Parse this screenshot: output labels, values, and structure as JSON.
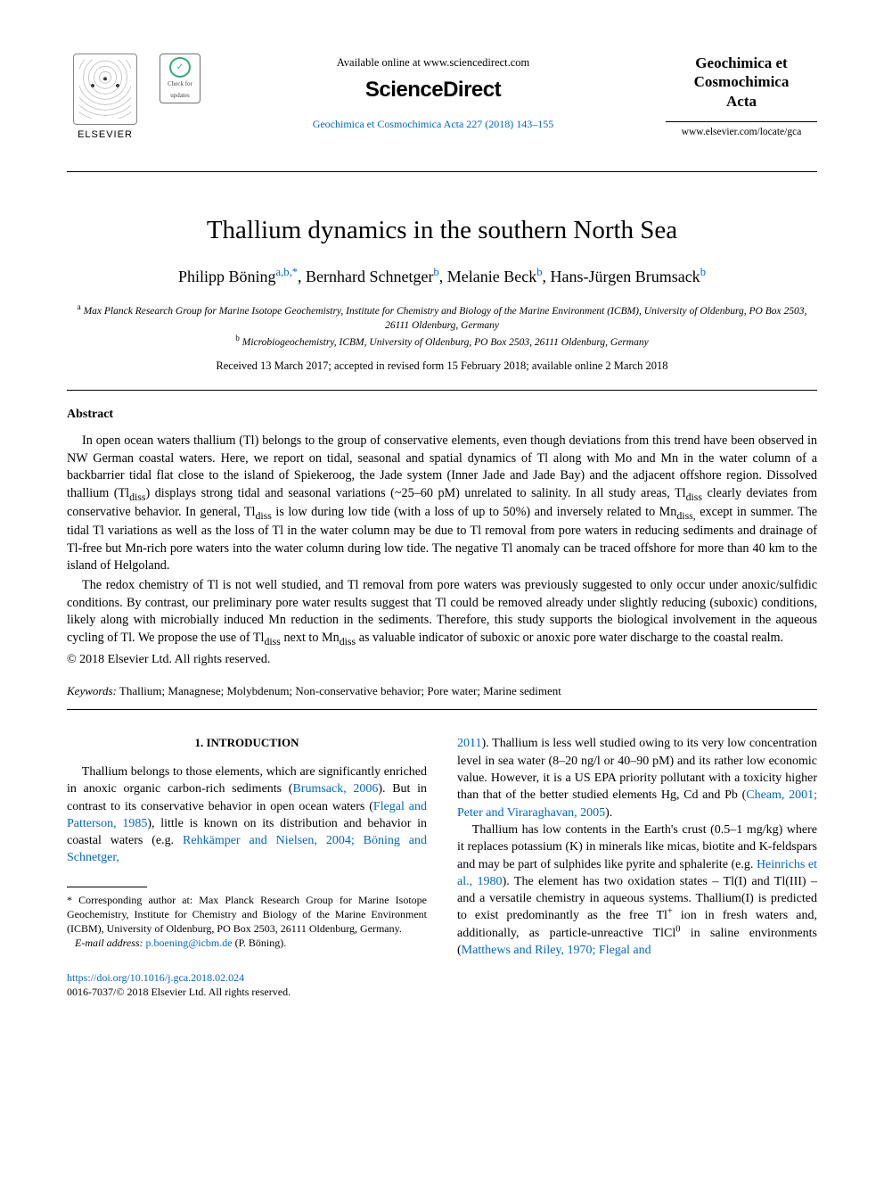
{
  "header": {
    "elsevier_label": "ELSEVIER",
    "crossmark_top": "Check for",
    "crossmark_bottom": "updates",
    "available_line": "Available online at www.sciencedirect.com",
    "sciencedirect": "ScienceDirect",
    "citation": "Geochimica et Cosmochimica Acta 227 (2018) 143–155",
    "journal_title_html": "Geochimica et Cosmochimica Acta",
    "journal_url": "www.elsevier.com/locate/gca"
  },
  "title": "Thallium dynamics in the southern North Sea",
  "authors": [
    {
      "name": "Philipp Böning",
      "marks": "a,b,",
      "star": "*"
    },
    {
      "name": "Bernhard Schnetger",
      "marks": "b"
    },
    {
      "name": "Melanie Beck",
      "marks": "b"
    },
    {
      "name": "Hans-Jürgen Brumsack",
      "marks": "b"
    }
  ],
  "affiliations": {
    "a": "Max Planck Research Group for Marine Isotope Geochemistry, Institute for Chemistry and Biology of the Marine Environment (ICBM), University of Oldenburg, PO Box 2503, 26111 Oldenburg, Germany",
    "b": "Microbiogeochemistry, ICBM, University of Oldenburg, PO Box 2503, 26111 Oldenburg, Germany"
  },
  "dates": "Received 13 March 2017; accepted in revised form 15 February 2018; available online 2 March 2018",
  "abstract": {
    "label": "Abstract",
    "para1_pre": "In open ocean waters thallium (Tl) belongs to the group of conservative elements, even though deviations from this trend have been observed in NW German coastal waters. Here, we report on tidal, seasonal and spatial dynamics of Tl along with Mo and Mn in the water column of a backbarrier tidal flat close to the island of Spiekeroog, the Jade system (Inner Jade and Jade Bay) and the adjacent offshore region. Dissolved thallium (Tl",
    "para1_mid1": ") displays strong tidal and seasonal variations (~25–60 pM) unrelated to salinity. In all study areas, Tl",
    "para1_mid2": " clearly deviates from conservative behavior. In general, Tl",
    "para1_mid3": " is low during low tide (with a loss of up to 50%) and inversely related to Mn",
    "para1_post": " except in summer. The tidal Tl variations as well as the loss of Tl in the water column may be due to Tl removal from pore waters in reducing sediments and drainage of Tl-free but Mn-rich pore waters into the water column during low tide. The negative Tl anomaly can be traced offshore for more than 40 km to the island of Helgoland.",
    "para2_pre": "The redox chemistry of Tl is not well studied, and Tl removal from pore waters was previously suggested to only occur under anoxic/sulfidic conditions. By contrast, our preliminary pore water results suggest that Tl could be removed already under slightly reducing (suboxic) conditions, likely along with microbially induced Mn reduction in the sediments. Therefore, this study supports the biological involvement in the aqueous cycling of Tl. We propose the use of Tl",
    "para2_mid": " next to Mn",
    "para2_post": " as valuable indicator of suboxic or anoxic pore water discharge to the coastal realm.",
    "copyright": "© 2018 Elsevier Ltd. All rights reserved.",
    "sub_diss": "diss",
    "sub_diss_comma": "diss,"
  },
  "keywords": {
    "label": "Keywords:",
    "text": " Thallium; Managnese; Molybdenum; Non-conservative behavior; Pore water; Marine sediment"
  },
  "body": {
    "section_head": "1. INTRODUCTION",
    "left": {
      "t1": "Thallium belongs to those elements, which are significantly enriched in anoxic organic carbon-rich sediments (",
      "l1": "Brumsack, 2006",
      "t2": "). But in contrast to its conservative behavior in open ocean waters (",
      "l2": "Flegal and Patterson, 1985",
      "t3": "), little is known on its distribution and behavior in coastal waters (e.g. ",
      "l3": "Rehkämper and Nielsen, 2004; Böning and Schnetger,"
    },
    "right": {
      "l1": "2011",
      "t1": "). Thallium is less well studied owing to its very low concentration level in sea water (8–20 ng/l or 40–90 pM) and its rather low economic value. However, it is a US EPA priority pollutant with a toxicity higher than that of the better studied elements Hg, Cd and Pb (",
      "l2": "Cheam, 2001; Peter and Viraraghavan, 2005",
      "t2": ").",
      "p2_t1": "Thallium has low contents in the Earth's crust (0.5–1 mg/kg) where it replaces potassium (K) in minerals like micas, biotite and K-feldspars and may be part of sulphides like pyrite and sphalerite (e.g. ",
      "p2_l1": "Heinrichs et al., 1980",
      "p2_t2": "). The element has two oxidation states – Tl(I) and Tl(III) – and a versatile chemistry in aqueous systems. Thallium(I) is predicted to exist predominantly as the free Tl",
      "p2_sup1": "+",
      "p2_t3": " ion in fresh waters and, additionally, as particle-unreactive TlCl",
      "p2_sup2": "0",
      "p2_t4": " in saline environments (",
      "p2_l2": "Matthews and Riley, 1970; Flegal and"
    }
  },
  "footnote": {
    "star": "*",
    "text": " Corresponding author at: Max Planck Research Group for Marine Isotope Geochemistry, Institute for Chemistry and Biology of the Marine Environment (ICBM), University of Oldenburg, PO Box 2503, 26111 Oldenburg, Germany.",
    "email_label": "E-mail address:",
    "email": "p.boening@icbm.de",
    "email_tail": " (P. Böning)."
  },
  "bottom": {
    "doi": "https://doi.org/10.1016/j.gca.2018.02.024",
    "issn_line": "0016-7037/© 2018 Elsevier Ltd. All rights reserved."
  }
}
